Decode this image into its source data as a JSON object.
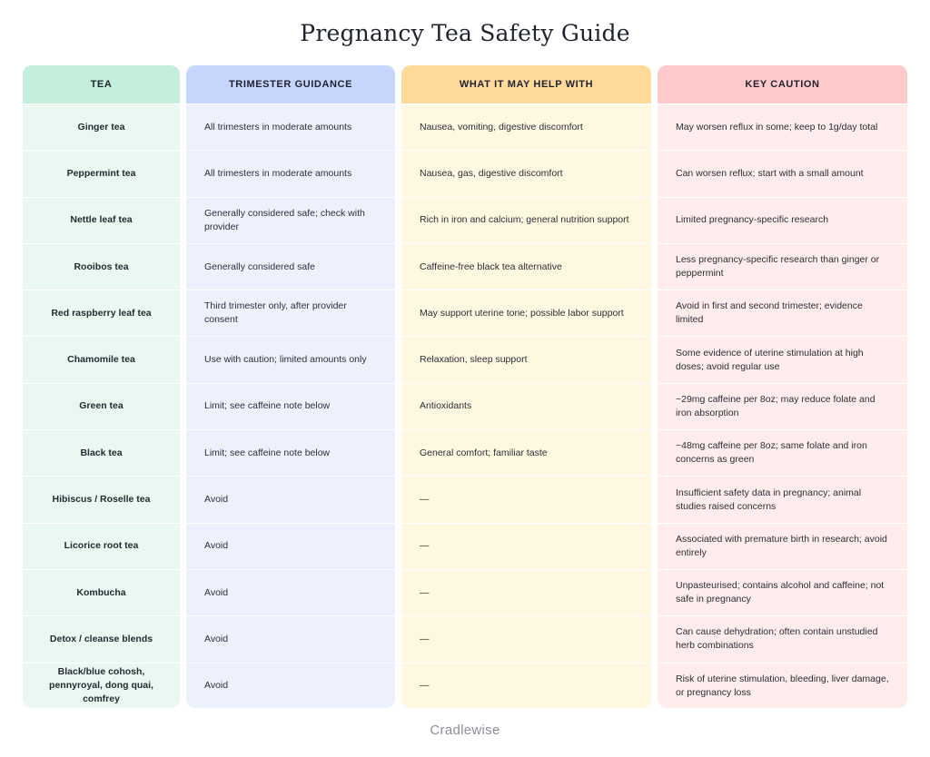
{
  "title": "Pregnancy Tea Safety Guide",
  "brand": "Cradlewise",
  "columns": [
    "TEA",
    "TRIMESTER GUIDANCE",
    "WHAT IT MAY HELP WITH",
    "KEY CAUTION"
  ],
  "rows": [
    {
      "tea": "Ginger tea",
      "trimester": "All trimesters in moderate amounts",
      "help": "Nausea, vomiting, digestive discomfort",
      "caution": "May worsen reflux in some; keep to 1g/day total"
    },
    {
      "tea": "Peppermint tea",
      "trimester": "All trimesters in moderate amounts",
      "help": "Nausea, gas, digestive discomfort",
      "caution": "Can worsen reflux; start with a small amount"
    },
    {
      "tea": "Nettle leaf tea",
      "trimester": "Generally considered safe; check with provider",
      "help": "Rich in iron and calcium; general nutrition support",
      "caution": "Limited pregnancy-specific research"
    },
    {
      "tea": "Rooibos tea",
      "trimester": "Generally considered safe",
      "help": "Caffeine-free black tea alternative",
      "caution": "Less pregnancy-specific research than ginger or peppermint"
    },
    {
      "tea": "Red raspberry leaf tea",
      "trimester": "Third trimester only, after provider consent",
      "help": "May support uterine tone; possible labor support",
      "caution": "Avoid in first and second trimester; evidence limited"
    },
    {
      "tea": "Chamomile tea",
      "trimester": "Use with caution; limited amounts only",
      "help": "Relaxation, sleep support",
      "caution": "Some evidence of uterine stimulation at high doses; avoid regular use"
    },
    {
      "tea": "Green tea",
      "trimester": "Limit; see caffeine note below",
      "help": "Antioxidants",
      "caution": "~29mg caffeine per 8oz; may reduce folate and iron absorption"
    },
    {
      "tea": "Black tea",
      "trimester": "Limit; see caffeine note below",
      "help": "General comfort; familiar taste",
      "caution": "~48mg caffeine per 8oz; same folate and iron concerns as green"
    },
    {
      "tea": "Hibiscus / Roselle tea",
      "trimester": "Avoid",
      "help": "—",
      "caution": "Insufficient safety data in pregnancy; animal studies raised concerns"
    },
    {
      "tea": "Licorice root tea",
      "trimester": "Avoid",
      "help": "—",
      "caution": "Associated with premature birth in research; avoid entirely"
    },
    {
      "tea": "Kombucha",
      "trimester": "Avoid",
      "help": "—",
      "caution": "Unpasteurised; contains alcohol and caffeine; not safe in pregnancy"
    },
    {
      "tea": "Detox / cleanse blends",
      "trimester": "Avoid",
      "help": "—",
      "caution": "Can cause dehydration; often contain unstudied herb combinations"
    },
    {
      "tea": "Black/blue cohosh, pennyroyal, dong quai, comfrey",
      "trimester": "Avoid",
      "help": "—",
      "caution": "Risk of uterine stimulation, bleeding, liver damage, or pregnancy loss"
    }
  ],
  "colors": {
    "tea_header": "#c4eedc",
    "tea_body": "#e9f8f1",
    "trimester_header": "#c6d5fc",
    "trimester_body": "#edf1fe",
    "help_header": "#ffd99a",
    "help_body": "#fff8e1",
    "caution_header": "#fdc9cb",
    "caution_body": "#ffeced"
  }
}
